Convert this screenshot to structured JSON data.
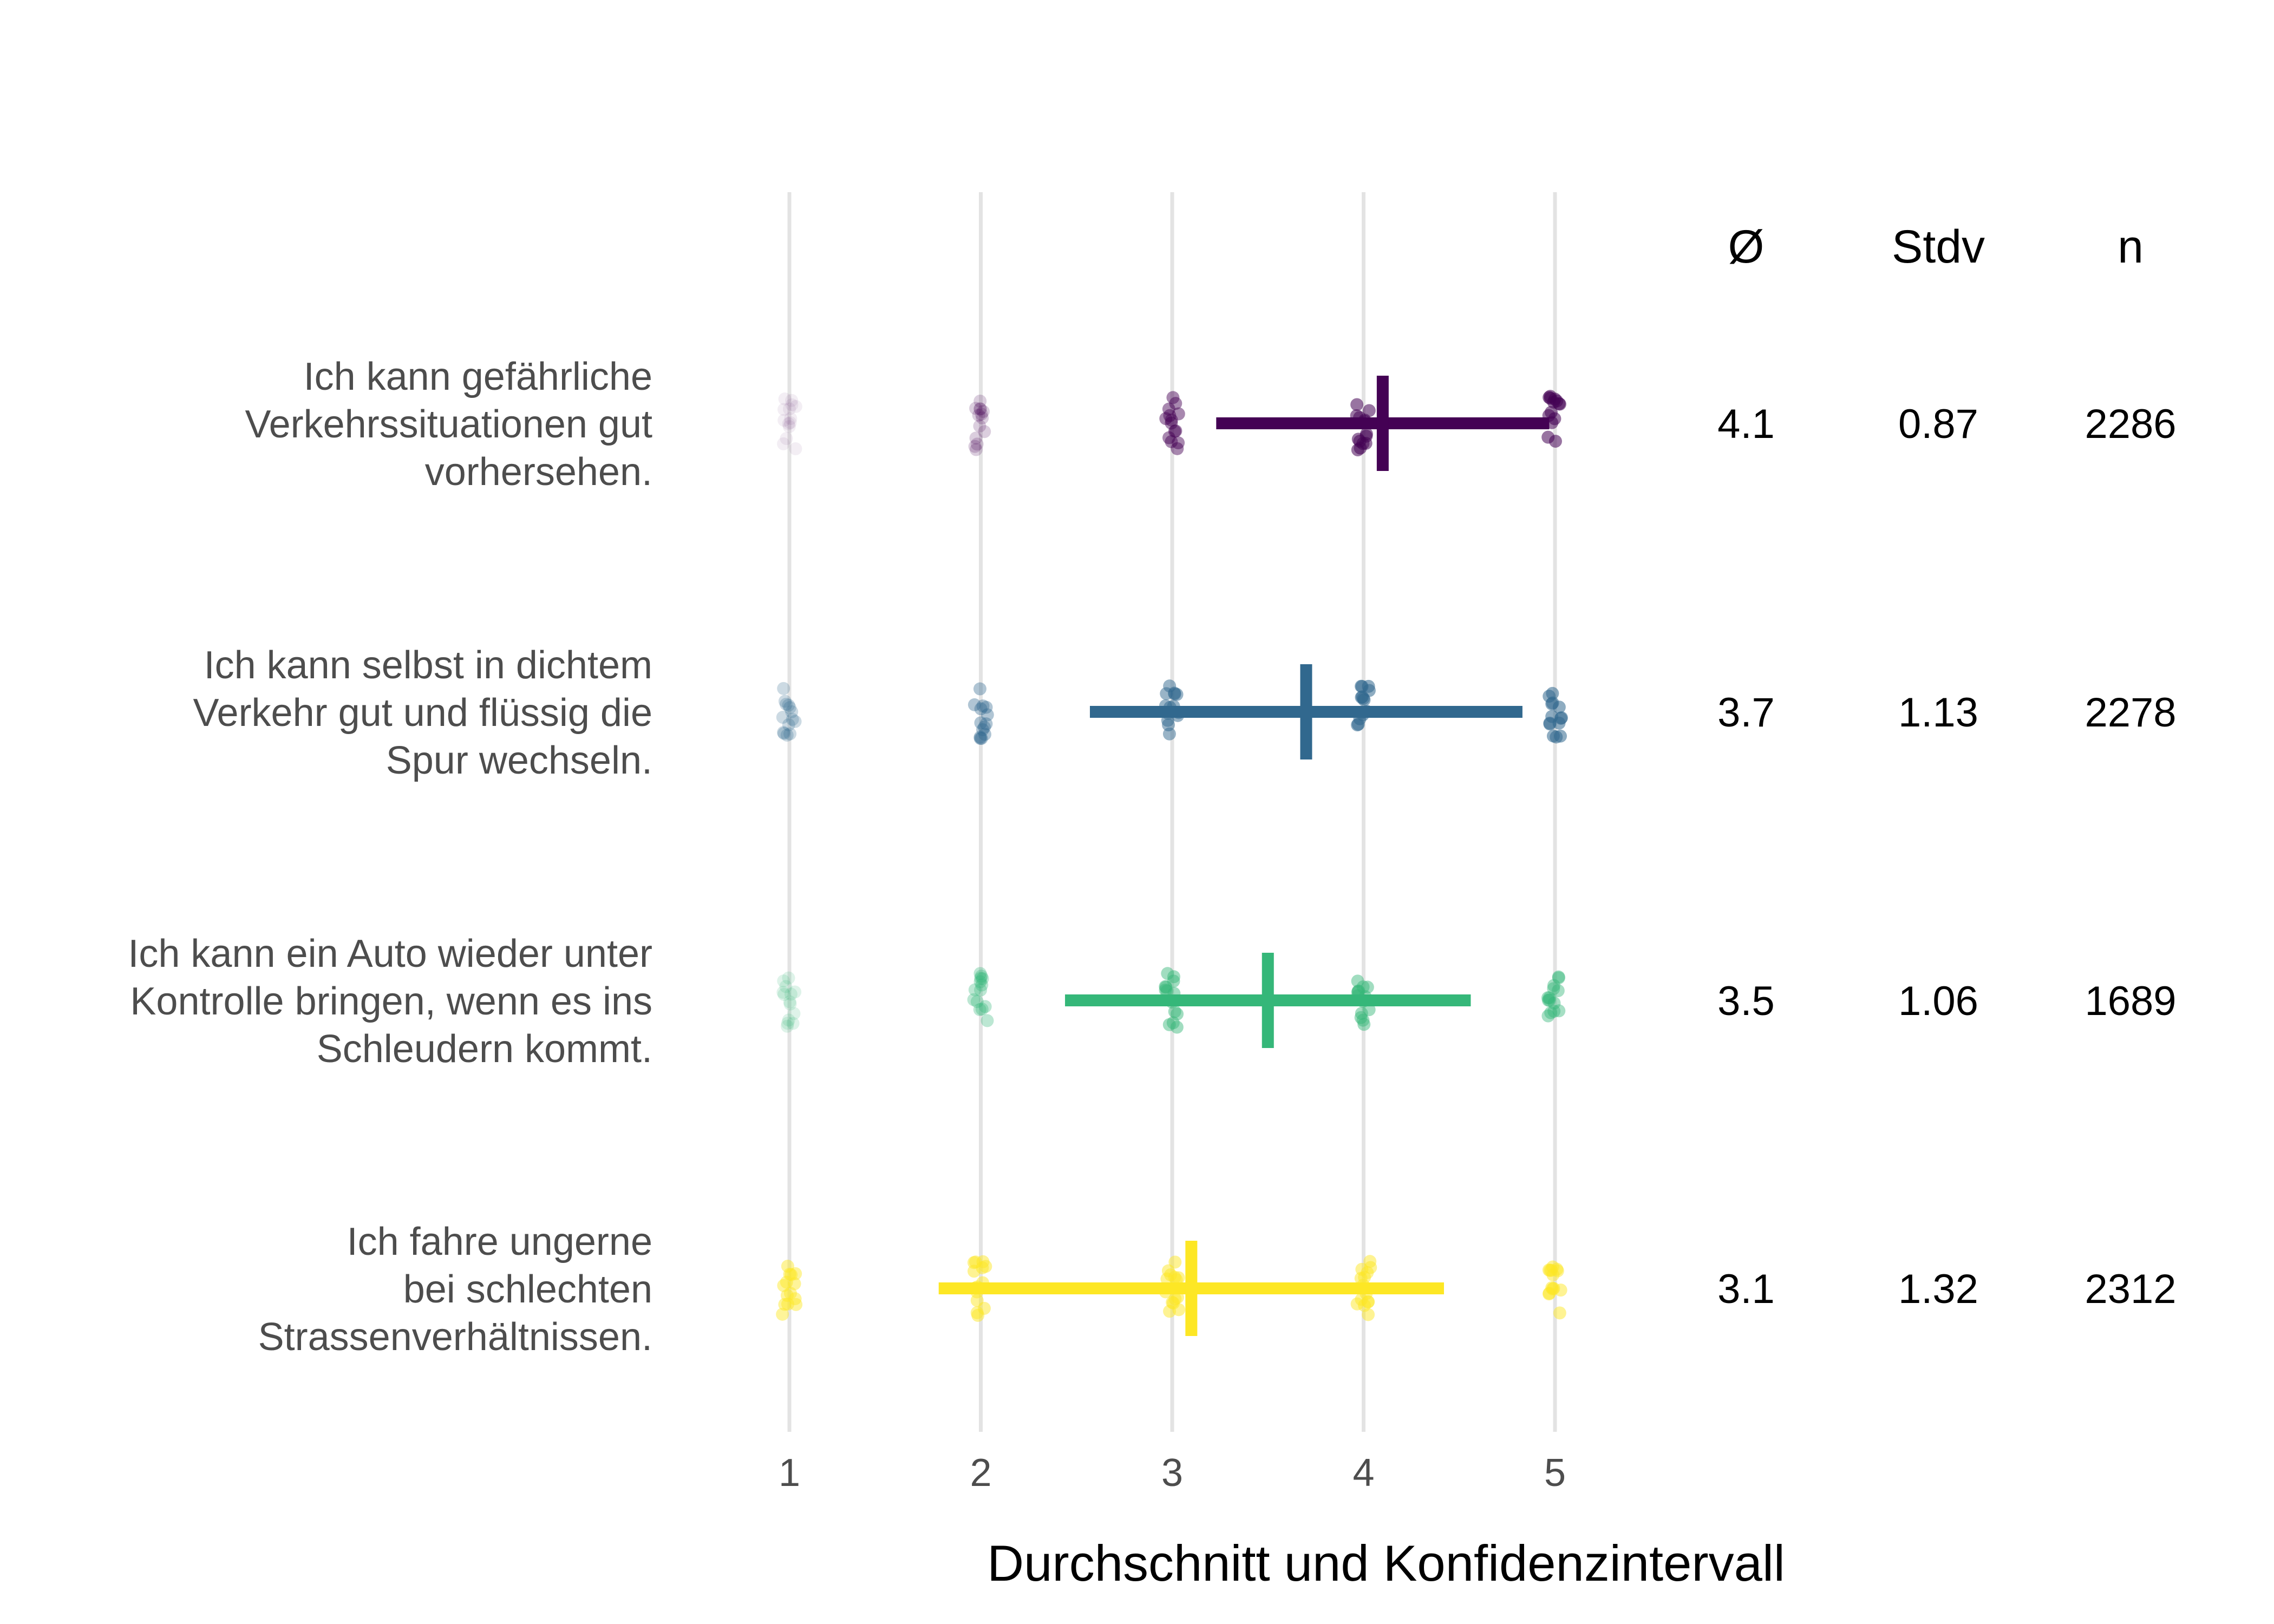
{
  "chart_data": {
    "type": "scatter",
    "title": "",
    "xlabel": "Durchschnitt und Konfidenzintervall",
    "ylabel": "",
    "xlim": [
      1,
      5
    ],
    "xticks": [
      1,
      2,
      3,
      4,
      5
    ],
    "xtick_labels": [
      "1",
      "2",
      "3",
      "4",
      "5"
    ],
    "grid": "vertical",
    "stat_headers": [
      "Ø",
      "Stdv",
      "n"
    ],
    "items": [
      {
        "label_lines": [
          "Ich kann gefährliche",
          "Verkehrssituationen gut",
          "vorhersehen."
        ],
        "mean": 4.1,
        "ci_low": 3.23,
        "ci_high": 4.97,
        "mean_label": "4.1",
        "stdv_label": "0.87",
        "n_label": "2286",
        "color": "#440154",
        "response_opacity": [
          0.12,
          0.35,
          0.85,
          1.0,
          1.0
        ]
      },
      {
        "label_lines": [
          "Ich kann selbst in dichtem",
          "Verkehr gut und flüssig die",
          "Spur wechseln."
        ],
        "mean": 3.7,
        "ci_low": 2.57,
        "ci_high": 4.83,
        "mean_label": "3.7",
        "stdv_label": "1.13",
        "n_label": "2278",
        "color": "#31688e",
        "response_opacity": [
          0.45,
          0.7,
          0.9,
          1.0,
          1.0
        ]
      },
      {
        "label_lines": [
          "Ich kann ein Auto wieder unter",
          "Kontrolle bringen, wenn es ins",
          "Schleudern kommt."
        ],
        "mean": 3.5,
        "ci_low": 2.44,
        "ci_high": 4.56,
        "mean_label": "3.5",
        "stdv_label": "1.06",
        "n_label": "1689",
        "color": "#35b779",
        "response_opacity": [
          0.3,
          0.6,
          0.85,
          0.85,
          0.8
        ]
      },
      {
        "label_lines": [
          "Ich fahre ungerne",
          "bei schlechten",
          "Strassenverhältnissen."
        ],
        "mean": 3.1,
        "ci_low": 1.78,
        "ci_high": 4.42,
        "mean_label": "3.1",
        "stdv_label": "1.32",
        "n_label": "2312",
        "color": "#fde725",
        "response_opacity": [
          0.85,
          0.9,
          0.9,
          0.9,
          0.9
        ]
      }
    ]
  }
}
